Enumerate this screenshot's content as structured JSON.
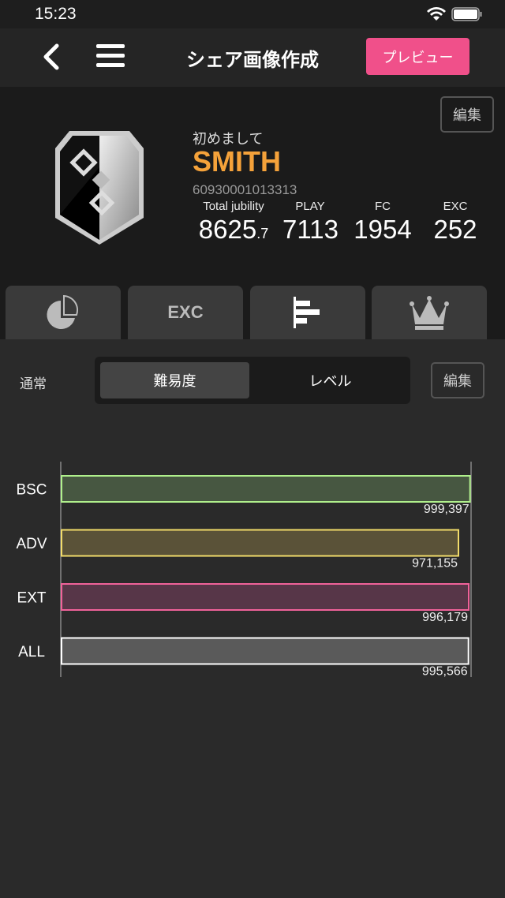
{
  "status_bar": {
    "time": "15:23"
  },
  "header": {
    "title": "シェア画像作成",
    "preview_label": "プレビュー"
  },
  "profile": {
    "edit_label": "編集",
    "greeting": "初めまして",
    "name": "SMITH",
    "player_id": "60930001013313",
    "stats": [
      {
        "label": "Total jubility",
        "value": "8625",
        "decimal": ".7"
      },
      {
        "label": "PLAY",
        "value": "7113"
      },
      {
        "label": "FC",
        "value": "1954"
      },
      {
        "label": "EXC",
        "value": "252"
      }
    ]
  },
  "tabs": [
    {
      "icon": "pie-chart-icon"
    },
    {
      "icon": "exc-icon",
      "label": "EXC"
    },
    {
      "icon": "bar-chart-icon",
      "active": true
    },
    {
      "icon": "crown-icon"
    }
  ],
  "controls": {
    "mode_label": "通常",
    "segments": [
      "難易度",
      "レベル"
    ],
    "selected_segment": "難易度",
    "edit_label": "編集"
  },
  "chart_data": {
    "type": "bar",
    "orientation": "horizontal",
    "categories": [
      "BSC",
      "ADV",
      "EXT",
      "ALL"
    ],
    "values": [
      999397,
      971155,
      996179,
      995566
    ],
    "value_labels": [
      "999,397",
      "971,155",
      "996,179",
      "995,566"
    ],
    "xlim": [
      0,
      1000000
    ],
    "colors": [
      {
        "fill": "#475741",
        "stroke": "#b0f08c"
      },
      {
        "fill": "#5a5238",
        "stroke": "#f2dc6a"
      },
      {
        "fill": "#573648",
        "stroke": "#f0629a"
      },
      {
        "fill": "#5a5a5a",
        "stroke": "#ffffff"
      }
    ]
  }
}
